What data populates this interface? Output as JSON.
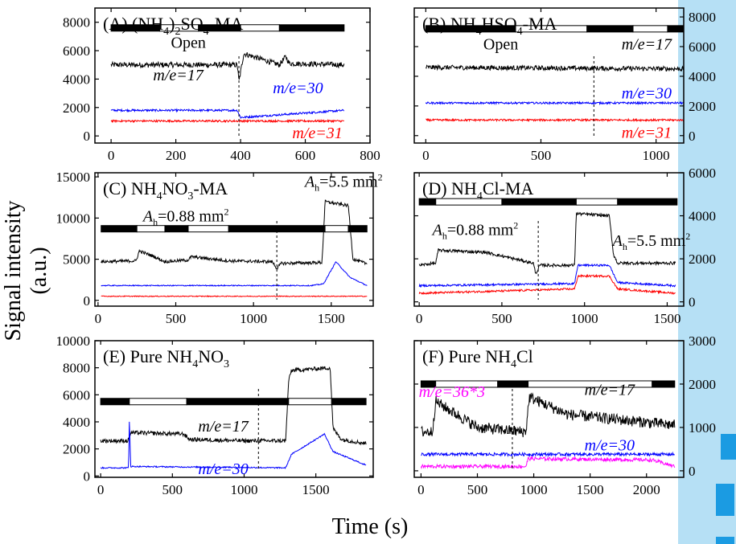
{
  "figure": {
    "ylabel": "Signal intensity (a.u.)",
    "xlabel": "Time (s)",
    "colors": {
      "black": "#000000",
      "blue": "#0000ff",
      "red": "#ff0000",
      "magenta": "#ff00ff",
      "sidebar": "#b6e0f5",
      "sidebar_accent": "#1b9be2"
    }
  },
  "chart_data": [
    {
      "id": "A",
      "type": "line",
      "title": "(A) (NH4)2SO4-MA",
      "title_parts": [
        [
          "(A) (NH",
          "n"
        ],
        [
          "4",
          "sub"
        ],
        [
          ")",
          "n"
        ],
        [
          "2",
          "sub"
        ],
        [
          "SO",
          "n"
        ],
        [
          "4",
          "sub"
        ],
        [
          "-MA",
          "n"
        ]
      ],
      "xlim": [
        -50,
        800
      ],
      "ylim": [
        -500,
        9000
      ],
      "xticks": [
        0,
        200,
        400,
        600,
        800
      ],
      "xtick_labels": [
        "0",
        "200",
        "400",
        "600",
        "800"
      ],
      "yticks": [
        0,
        2000,
        4000,
        6000,
        8000
      ],
      "ytick_labels": [
        "0",
        "2000",
        "4000",
        "6000",
        "8000"
      ],
      "yaxis": "left",
      "dashed_x": [
        395
      ],
      "bar": {
        "y": 7600,
        "segments": [
          [
            0,
            150,
            "black"
          ],
          [
            150,
            270,
            "white"
          ],
          [
            270,
            400,
            "black"
          ],
          [
            400,
            520,
            "white"
          ],
          [
            520,
            720,
            "black"
          ]
        ]
      },
      "series": [
        {
          "color": "#000000",
          "noise": 380,
          "x": [
            0,
            390,
            395,
            410,
            520,
            540,
            550,
            720
          ],
          "y": [
            5000,
            5000,
            3800,
            5800,
            5000,
            5600,
            5100,
            5000
          ]
        },
        {
          "color": "#0000ff",
          "noise": 140,
          "x": [
            0,
            390,
            400,
            720
          ],
          "y": [
            1800,
            1800,
            1300,
            1800
          ]
        },
        {
          "color": "#ff0000",
          "noise": 140,
          "x": [
            0,
            720
          ],
          "y": [
            1050,
            1050
          ]
        }
      ],
      "labels": [
        {
          "text": "Open",
          "x": 185,
          "y": 6200,
          "color": "#000000",
          "italic": false
        },
        {
          "text": "m/e=17",
          "x": 130,
          "y": 3900,
          "color": "#000000",
          "italic": true
        },
        {
          "text": "m/e=30",
          "x": 500,
          "y": 3000,
          "color": "#0000ff",
          "italic": true
        },
        {
          "text": "m/e=31",
          "x": 560,
          "y": -150,
          "color": "#ff0000",
          "italic": true
        }
      ]
    },
    {
      "id": "B",
      "type": "line",
      "title": "(B) NH4HSO4-MA",
      "title_parts": [
        [
          "(B) NH",
          "n"
        ],
        [
          "4",
          "sub"
        ],
        [
          "HSO",
          "n"
        ],
        [
          "4",
          "sub"
        ],
        [
          "-MA",
          "n"
        ]
      ],
      "xlim": [
        -50,
        1120
      ],
      "ylim": [
        -500,
        8600
      ],
      "xticks": [
        0,
        500,
        1000
      ],
      "xtick_labels": [
        "0",
        "500",
        "1000"
      ],
      "yticks": [
        0,
        2000,
        4000,
        6000,
        8000
      ],
      "ytick_labels": [
        "0",
        "2000",
        "4000",
        "6000",
        "8000"
      ],
      "yaxis": "right",
      "dashed_x": [
        730
      ],
      "bar": {
        "y": 7200,
        "segments": [
          [
            0,
            390,
            "black"
          ],
          [
            390,
            700,
            "white"
          ],
          [
            700,
            900,
            "black"
          ],
          [
            900,
            1050,
            "white"
          ],
          [
            1050,
            1120,
            "black"
          ]
        ]
      },
      "series": [
        {
          "color": "#000000",
          "noise": 320,
          "x": [
            0,
            1120
          ],
          "y": [
            4600,
            4500
          ]
        },
        {
          "color": "#0000ff",
          "noise": 130,
          "x": [
            0,
            1120
          ],
          "y": [
            2200,
            2200
          ]
        },
        {
          "color": "#ff0000",
          "noise": 130,
          "x": [
            0,
            1120
          ],
          "y": [
            1050,
            1050
          ]
        }
      ],
      "labels": [
        {
          "text": "Open",
          "x": 250,
          "y": 5800,
          "color": "#000000",
          "italic": false
        },
        {
          "text": "m/e=17",
          "x": 850,
          "y": 5800,
          "color": "#000000",
          "italic": true
        },
        {
          "text": "m/e=30",
          "x": 850,
          "y": 2500,
          "color": "#0000ff",
          "italic": true
        },
        {
          "text": "m/e=31",
          "x": 850,
          "y": -150,
          "color": "#ff0000",
          "italic": true
        }
      ]
    },
    {
      "id": "C",
      "type": "line",
      "title": "(C) NH4NO3-MA",
      "title_parts": [
        [
          "(C) NH",
          "n"
        ],
        [
          "4",
          "sub"
        ],
        [
          "NO",
          "n"
        ],
        [
          "3",
          "sub"
        ],
        [
          "-MA",
          "n"
        ]
      ],
      "xlim": [
        -20,
        1770
      ],
      "ylim": [
        -700,
        15500
      ],
      "xticks": [
        0,
        500,
        1000,
        1500
      ],
      "xtick_labels": [
        "0",
        "500",
        "1000",
        "1500"
      ],
      "yticks": [
        0,
        5000,
        10000,
        15000
      ],
      "ytick_labels": [
        "0",
        "5000",
        "10000",
        "15000"
      ],
      "yaxis": "left",
      "dashed_x": [
        1150
      ],
      "bar": {
        "y": 8700,
        "segments": [
          [
            20,
            250,
            "black"
          ],
          [
            250,
            430,
            "white"
          ],
          [
            430,
            580,
            "black"
          ],
          [
            580,
            840,
            "white"
          ],
          [
            840,
            1460,
            "black"
          ],
          [
            1460,
            1610,
            "white"
          ],
          [
            1610,
            1730,
            "black"
          ]
        ]
      },
      "series": [
        {
          "color": "#000000",
          "noise": 380,
          "x": [
            20,
            245,
            265,
            350,
            430,
            580,
            600,
            840,
            1120,
            1150,
            1180,
            1440,
            1450,
            1460,
            1610,
            1640,
            1720,
            1730
          ],
          "y": [
            4700,
            4800,
            6000,
            5400,
            4700,
            4900,
            5300,
            4800,
            4700,
            3900,
            4500,
            4600,
            8000,
            12000,
            11500,
            5000,
            4500,
            4500
          ]
        },
        {
          "color": "#0000ff",
          "noise": 120,
          "x": [
            20,
            1370,
            1450,
            1530,
            1620,
            1730
          ],
          "y": [
            1800,
            1800,
            2000,
            4700,
            2800,
            1800
          ]
        },
        {
          "color": "#ff0000",
          "noise": 100,
          "x": [
            20,
            1730
          ],
          "y": [
            500,
            500
          ]
        }
      ],
      "labels": [
        {
          "text": "Ah=0.88 mm2",
          "x": 290,
          "y": 9600,
          "color": "#000000",
          "italic": false,
          "ah": true
        },
        {
          "text": "Ah=5.5 mm2",
          "x": 1330,
          "y": 13800,
          "color": "#000000",
          "italic": false,
          "ah": true
        }
      ]
    },
    {
      "id": "D",
      "type": "line",
      "title": "(D) NH4Cl-MA",
      "title_parts": [
        [
          "(D) NH",
          "n"
        ],
        [
          "4",
          "sub"
        ],
        [
          "Cl-MA",
          "n"
        ]
      ],
      "xlim": [
        -30,
        1600
      ],
      "ylim": [
        -200,
        6000
      ],
      "xticks": [
        0,
        500,
        1000,
        1500
      ],
      "xtick_labels": [
        "0",
        "500",
        "1000",
        "1500"
      ],
      "yticks": [
        0,
        2000,
        4000,
        6000
      ],
      "ytick_labels": [
        "0",
        "2000",
        "4000",
        "6000"
      ],
      "yaxis": "right",
      "dashed_x": [
        720
      ],
      "bar": {
        "y": 4650,
        "segments": [
          [
            0,
            100,
            "black"
          ],
          [
            100,
            500,
            "white"
          ],
          [
            500,
            950,
            "black"
          ],
          [
            950,
            1200,
            "white"
          ],
          [
            1200,
            1560,
            "black"
          ]
        ]
      },
      "series": [
        {
          "color": "#000000",
          "noise": 140,
          "x": [
            0,
            100,
            115,
            400,
            690,
            705,
            730,
            940,
            950,
            1150,
            1175,
            1200,
            1550
          ],
          "y": [
            1700,
            1800,
            2400,
            2300,
            1800,
            1300,
            1700,
            1700,
            4100,
            4000,
            2200,
            1800,
            1800
          ]
        },
        {
          "color": "#0000ff",
          "noise": 90,
          "x": [
            0,
            940,
            960,
            1150,
            1200,
            1550
          ],
          "y": [
            750,
            850,
            1700,
            1700,
            900,
            750
          ]
        },
        {
          "color": "#ff0000",
          "noise": 90,
          "x": [
            0,
            940,
            960,
            1150,
            1200,
            1550
          ],
          "y": [
            400,
            600,
            1200,
            1200,
            600,
            400
          ]
        }
      ],
      "labels": [
        {
          "text": "Ah=0.88 mm2",
          "x": 80,
          "y": 3100,
          "color": "#000000",
          "italic": false,
          "ah": true
        },
        {
          "text": "Ah=5.5 mm2",
          "x": 1170,
          "y": 2600,
          "color": "#000000",
          "italic": false,
          "ah": true
        }
      ]
    },
    {
      "id": "E",
      "type": "line",
      "title": "(E) Pure NH4NO3",
      "title_parts": [
        [
          "(E) Pure NH",
          "n"
        ],
        [
          "4",
          "sub"
        ],
        [
          "NO",
          "n"
        ],
        [
          "3",
          "sub"
        ]
      ],
      "xlim": [
        -40,
        1900
      ],
      "ylim": [
        -100,
        10000
      ],
      "xticks": [
        0,
        500,
        1000,
        1500
      ],
      "xtick_labels": [
        "0",
        "500",
        "1000",
        "1500"
      ],
      "yticks": [
        0,
        2000,
        4000,
        6000,
        8000,
        10000
      ],
      "ytick_labels": [
        "0",
        "2000",
        "4000",
        "6000",
        "8000",
        "10000"
      ],
      "yaxis": "left",
      "dashed_x": [
        1100
      ],
      "bar": {
        "y": 5500,
        "segments": [
          [
            0,
            200,
            "black"
          ],
          [
            200,
            600,
            "white"
          ],
          [
            600,
            1310,
            "black"
          ],
          [
            1310,
            1610,
            "white"
          ],
          [
            1610,
            1850,
            "black"
          ]
        ]
      },
      "series": [
        {
          "color": "#000000",
          "noise": 300,
          "x": [
            0,
            190,
            210,
            580,
            620,
            1000,
            1290,
            1310,
            1330,
            1600,
            1620,
            1680,
            1850
          ],
          "y": [
            2600,
            2600,
            3200,
            3100,
            2700,
            2600,
            2600,
            7000,
            7800,
            8000,
            3500,
            2700,
            2400
          ]
        },
        {
          "color": "#0000ff",
          "noise": 90,
          "x": [
            0,
            195,
            200,
            210,
            1290,
            1330,
            1560,
            1620,
            1850
          ],
          "y": [
            600,
            600,
            4200,
            700,
            600,
            1600,
            3100,
            1800,
            800
          ]
        }
      ],
      "labels": [
        {
          "text": "m/e=17",
          "x": 680,
          "y": 3300,
          "color": "#000000",
          "italic": true
        },
        {
          "text": "m/e=30",
          "x": 680,
          "y": 150,
          "color": "#0000ff",
          "italic": true
        }
      ]
    },
    {
      "id": "F",
      "type": "line",
      "title": "(F) Pure NH4Cl",
      "title_parts": [
        [
          "(F) Pure NH",
          "n"
        ],
        [
          "4",
          "sub"
        ],
        [
          "Cl",
          "n"
        ]
      ],
      "xlim": [
        -60,
        2330
      ],
      "ylim": [
        -150,
        3000
      ],
      "xticks": [
        0,
        500,
        1000,
        1500,
        2000
      ],
      "xtick_labels": [
        "0",
        "500",
        "1000",
        "1500",
        "2000"
      ],
      "yticks": [
        0,
        1000,
        2000,
        3000
      ],
      "ytick_labels": [
        "0",
        "1000",
        "2000",
        "3000"
      ],
      "yaxis": "right",
      "dashed_x": [
        810
      ],
      "bar": {
        "y": 2000,
        "segments": [
          [
            0,
            130,
            "black"
          ],
          [
            130,
            680,
            "white"
          ],
          [
            680,
            950,
            "black"
          ],
          [
            950,
            2050,
            "white"
          ],
          [
            2050,
            2250,
            "black"
          ]
        ]
      },
      "series": [
        {
          "color": "#000000",
          "noise": 260,
          "x": [
            0,
            100,
            130,
            500,
            900,
            930,
            960,
            1300,
            2250
          ],
          "y": [
            900,
            900,
            1600,
            1000,
            900,
            900,
            1700,
            1300,
            1050
          ]
        },
        {
          "color": "#0000ff",
          "noise": 70,
          "x": [
            0,
            2250
          ],
          "y": [
            380,
            380
          ]
        },
        {
          "color": "#ff00ff",
          "noise": 80,
          "x": [
            0,
            930,
            950,
            2050,
            2250
          ],
          "y": [
            100,
            100,
            280,
            250,
            100
          ]
        }
      ],
      "labels": [
        {
          "text": "m/e=36*3",
          "x": -20,
          "y": 1700,
          "color": "#ff00ff",
          "italic": true
        },
        {
          "text": "m/e=17",
          "x": 1450,
          "y": 1750,
          "color": "#000000",
          "italic": true
        },
        {
          "text": "m/e=30",
          "x": 1450,
          "y": 470,
          "color": "#0000ff",
          "italic": true
        }
      ]
    }
  ]
}
